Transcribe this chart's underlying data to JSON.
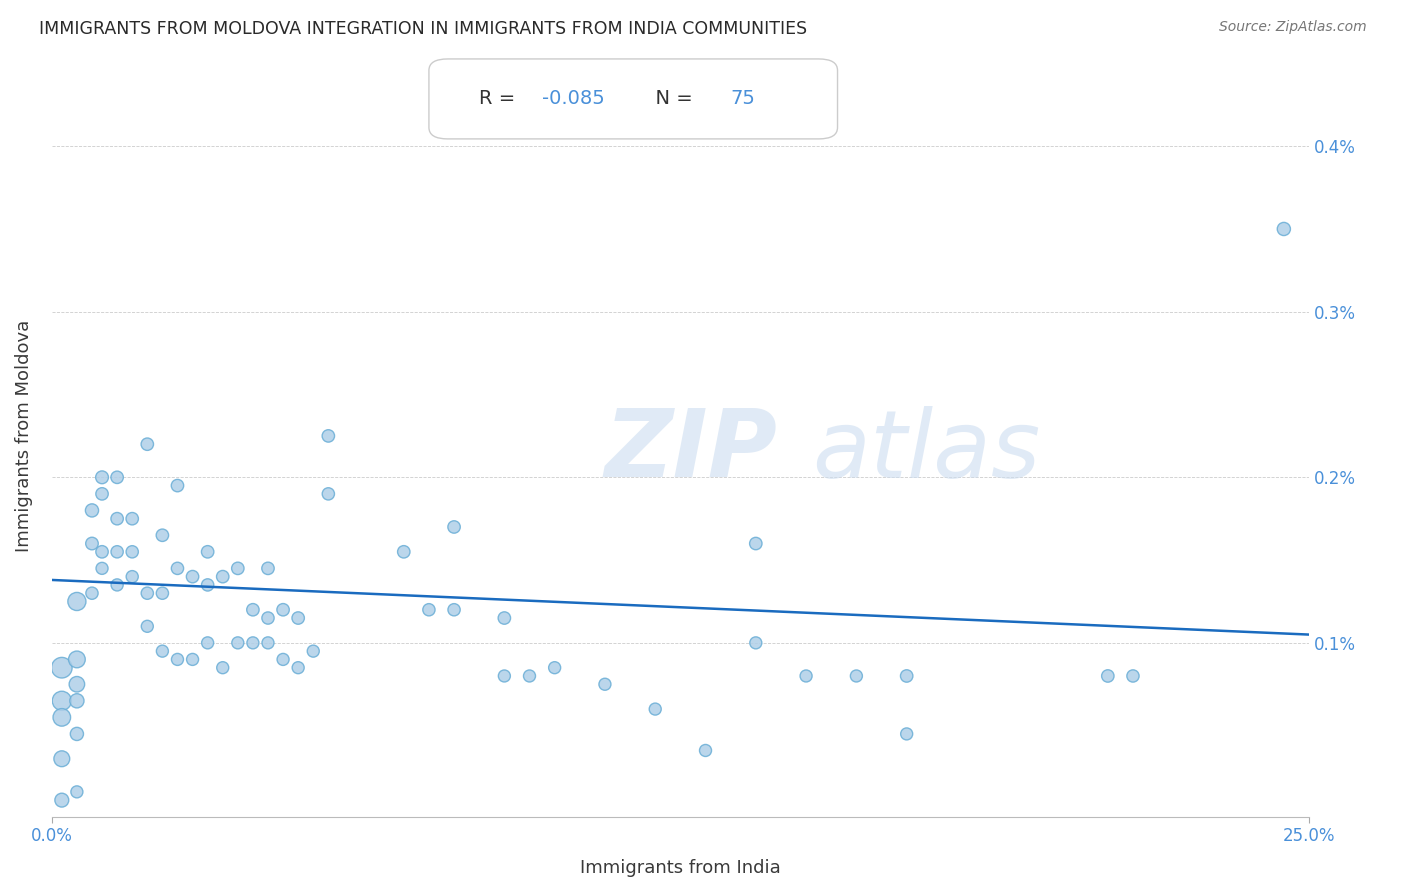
{
  "title": "IMMIGRANTS FROM MOLDOVA INTEGRATION IN IMMIGRANTS FROM INDIA COMMUNITIES",
  "source": "Source: ZipAtlas.com",
  "xlabel": "Immigrants from India",
  "ylabel": "Immigrants from Moldova",
  "R_val": "-0.085",
  "N_val": "75",
  "xlim": [
    0.0,
    0.25
  ],
  "ylim": [
    -5e-05,
    0.00455
  ],
  "xtick_positions": [
    0.0,
    0.25
  ],
  "xtick_labels": [
    "0.0%",
    "25.0%"
  ],
  "yticks": [
    0.001,
    0.002,
    0.003,
    0.004
  ],
  "ytick_labels": [
    "0.1%",
    "0.2%",
    "0.3%",
    "0.4%"
  ],
  "scatter_color": "#b0cfe8",
  "scatter_edge_color": "#6aaed6",
  "line_color": "#1a6bbf",
  "tick_label_color": "#4a90d9",
  "label_color": "#3a3a3a",
  "title_color": "#2a2a2a",
  "source_color": "#777777",
  "watermark": "ZIPatlas",
  "watermark_color": "#ccddf0",
  "stats_text_color": "#333333",
  "stats_highlight_color": "#4a90d9",
  "points_x": [
    0.002,
    0.002,
    0.002,
    0.002,
    0.002,
    0.005,
    0.005,
    0.005,
    0.005,
    0.005,
    0.005,
    0.008,
    0.008,
    0.008,
    0.01,
    0.01,
    0.01,
    0.01,
    0.013,
    0.013,
    0.013,
    0.013,
    0.016,
    0.016,
    0.016,
    0.019,
    0.019,
    0.019,
    0.022,
    0.022,
    0.022,
    0.025,
    0.025,
    0.025,
    0.028,
    0.028,
    0.031,
    0.031,
    0.031,
    0.034,
    0.034,
    0.037,
    0.037,
    0.04,
    0.04,
    0.043,
    0.043,
    0.043,
    0.046,
    0.046,
    0.049,
    0.049,
    0.052,
    0.055,
    0.055,
    0.07,
    0.075,
    0.08,
    0.08,
    0.09,
    0.09,
    0.095,
    0.1,
    0.11,
    0.12,
    0.13,
    0.14,
    0.14,
    0.15,
    0.16,
    0.17,
    0.17,
    0.21,
    0.215,
    0.245
  ],
  "points_y": [
    0.00085,
    0.00065,
    0.00055,
    0.0003,
    5e-05,
    0.00125,
    0.0009,
    0.00075,
    0.00065,
    0.00045,
    0.0001,
    0.0018,
    0.0016,
    0.0013,
    0.002,
    0.0019,
    0.00155,
    0.00145,
    0.002,
    0.00175,
    0.00155,
    0.00135,
    0.00175,
    0.00155,
    0.0014,
    0.0022,
    0.0013,
    0.0011,
    0.00165,
    0.0013,
    0.00095,
    0.00195,
    0.00145,
    0.0009,
    0.0014,
    0.0009,
    0.00155,
    0.00135,
    0.001,
    0.0014,
    0.00085,
    0.00145,
    0.001,
    0.0012,
    0.001,
    0.00145,
    0.00115,
    0.001,
    0.0012,
    0.0009,
    0.00115,
    0.00085,
    0.00095,
    0.00225,
    0.0019,
    0.00155,
    0.0012,
    0.0017,
    0.0012,
    0.00115,
    0.0008,
    0.0008,
    0.00085,
    0.00075,
    0.0006,
    0.00035,
    0.0016,
    0.001,
    0.0008,
    0.0008,
    0.0008,
    0.00045,
    0.0008,
    0.0008,
    0.0035
  ],
  "points_size": [
    220,
    190,
    160,
    130,
    100,
    170,
    145,
    125,
    105,
    90,
    75,
    90,
    82,
    78,
    85,
    80,
    80,
    75,
    80,
    80,
    78,
    76,
    80,
    78,
    76,
    80,
    78,
    75,
    80,
    78,
    75,
    80,
    78,
    75,
    80,
    75,
    80,
    78,
    75,
    80,
    75,
    80,
    75,
    80,
    75,
    80,
    78,
    75,
    80,
    75,
    80,
    75,
    75,
    80,
    78,
    80,
    78,
    80,
    78,
    80,
    75,
    75,
    75,
    75,
    75,
    75,
    80,
    75,
    75,
    75,
    80,
    75,
    80,
    78,
    90
  ],
  "reg_line_x": [
    0.0,
    0.25
  ],
  "reg_line_y_start": 0.00138,
  "reg_line_y_end": 0.00105
}
